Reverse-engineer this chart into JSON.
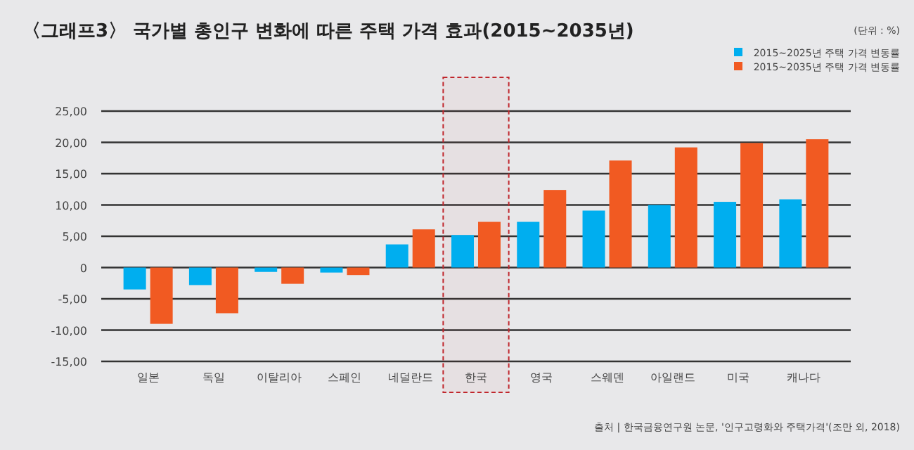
{
  "chart_data": {
    "type": "bar",
    "title": "〈그래프3〉 국가별 총인구 변화에 따른 주택 가격 효과(2015~2035년)",
    "annotations": [
      "(단위 : %)",
      "출처 | 한국금융연구원 논문, '인구고령화와 주택가격'(조만 외, 2018)"
    ],
    "categories": [
      "일본",
      "독일",
      "이탈리아",
      "스페인",
      "네덜란드",
      "한국",
      "영국",
      "스웨덴",
      "아일랜드",
      "미국",
      "캐나다"
    ],
    "series": [
      {
        "name": "2015~2025년 주택 가격 변동률",
        "color": "#00aeef",
        "values": [
          -3.5,
          -2.8,
          -0.7,
          -0.8,
          3.7,
          5.2,
          7.3,
          9.1,
          10.0,
          10.5,
          10.9
        ]
      },
      {
        "name": "2015~2035년 주택 가격 변동률",
        "color": "#f15a22",
        "values": [
          -9.0,
          -7.3,
          -2.6,
          -1.2,
          6.1,
          7.3,
          12.4,
          17.1,
          19.2,
          19.9,
          20.5
        ]
      }
    ],
    "ylim": [
      -15,
      25
    ],
    "yticks": [
      {
        "value": -15,
        "label": "-15,00"
      },
      {
        "value": -10,
        "label": "-10,00"
      },
      {
        "value": -5,
        "label": "-5,00"
      },
      0,
      {
        "value": 5,
        "label": "5,00"
      },
      {
        "value": 10,
        "label": "10,00"
      },
      {
        "value": 15,
        "label": "15,00"
      },
      {
        "value": 20,
        "label": "20,00"
      },
      {
        "value": 25,
        "label": "25,00"
      }
    ],
    "grid": "y",
    "legend": "top right",
    "bands": [
      {
        "axis": "x",
        "from": "한국",
        "to": "한국",
        "color": "#c0272d"
      }
    ]
  }
}
